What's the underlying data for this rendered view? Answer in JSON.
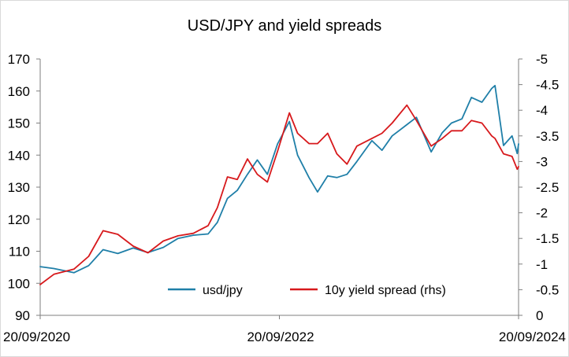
{
  "chart_data": {
    "type": "line",
    "title": "USD/JPY and yield spreads",
    "x_ticks": [
      "20/09/2020",
      "20/09/2022",
      "20/09/2024"
    ],
    "x_range": [
      "2020-09-20",
      "2024-09-20"
    ],
    "y_left": {
      "min": 90,
      "max": 170,
      "ticks": [
        "170",
        "160",
        "150",
        "140",
        "130",
        "120",
        "110",
        "100",
        "90"
      ]
    },
    "y_right": {
      "min": 0,
      "max": -5,
      "inverted": true,
      "ticks": [
        "-5",
        "-4.5",
        "-4",
        "-3.5",
        "-3",
        "-2.5",
        "-2",
        "-1.5",
        "-1",
        "-0.5",
        "0"
      ]
    },
    "grid": false,
    "legend_position": "bottom-center",
    "series": [
      {
        "name": "usd/jpy",
        "axis": "left",
        "color": "#1f7fa8",
        "points": [
          [
            "2020-09-20",
            105.2
          ],
          [
            "2020-11-01",
            104.6
          ],
          [
            "2021-01-01",
            103.3
          ],
          [
            "2021-02-15",
            105.5
          ],
          [
            "2021-03-31",
            110.5
          ],
          [
            "2021-05-15",
            109.3
          ],
          [
            "2021-07-01",
            111.0
          ],
          [
            "2021-08-15",
            109.6
          ],
          [
            "2021-10-01",
            111.2
          ],
          [
            "2021-11-15",
            114.0
          ],
          [
            "2022-01-01",
            115.0
          ],
          [
            "2022-02-15",
            115.4
          ],
          [
            "2022-03-15",
            119.0
          ],
          [
            "2022-04-15",
            126.5
          ],
          [
            "2022-05-15",
            129.0
          ],
          [
            "2022-06-15",
            134.0
          ],
          [
            "2022-07-15",
            138.5
          ],
          [
            "2022-08-15",
            134.0
          ],
          [
            "2022-09-15",
            143.5
          ],
          [
            "2022-10-21",
            150.5
          ],
          [
            "2022-11-15",
            140.0
          ],
          [
            "2022-12-20",
            133.0
          ],
          [
            "2023-01-15",
            128.5
          ],
          [
            "2023-02-15",
            133.5
          ],
          [
            "2023-03-15",
            133.0
          ],
          [
            "2023-04-15",
            134.0
          ],
          [
            "2023-05-15",
            138.0
          ],
          [
            "2023-06-30",
            144.5
          ],
          [
            "2023-07-31",
            141.5
          ],
          [
            "2023-08-31",
            146.0
          ],
          [
            "2023-10-15",
            149.5
          ],
          [
            "2023-11-13",
            151.8
          ],
          [
            "2023-12-28",
            141.0
          ],
          [
            "2024-01-31",
            147.0
          ],
          [
            "2024-02-28",
            150.0
          ],
          [
            "2024-03-31",
            151.3
          ],
          [
            "2024-04-29",
            158.0
          ],
          [
            "2024-05-31",
            156.5
          ],
          [
            "2024-06-30",
            160.8
          ],
          [
            "2024-07-10",
            161.7
          ],
          [
            "2024-08-05",
            143.0
          ],
          [
            "2024-08-31",
            146.0
          ],
          [
            "2024-09-16",
            140.5
          ],
          [
            "2024-09-20",
            143.5
          ]
        ]
      },
      {
        "name": "10y yield spread (rhs)",
        "axis": "right",
        "color": "#d7191c",
        "points": [
          [
            "2020-09-20",
            -0.6
          ],
          [
            "2020-11-01",
            -0.8
          ],
          [
            "2021-01-01",
            -0.9
          ],
          [
            "2021-02-15",
            -1.15
          ],
          [
            "2021-03-31",
            -1.65
          ],
          [
            "2021-05-15",
            -1.58
          ],
          [
            "2021-07-01",
            -1.35
          ],
          [
            "2021-08-15",
            -1.22
          ],
          [
            "2021-10-01",
            -1.45
          ],
          [
            "2021-11-15",
            -1.55
          ],
          [
            "2022-01-01",
            -1.6
          ],
          [
            "2022-02-15",
            -1.75
          ],
          [
            "2022-03-15",
            -2.1
          ],
          [
            "2022-04-15",
            -2.7
          ],
          [
            "2022-05-15",
            -2.65
          ],
          [
            "2022-06-15",
            -3.05
          ],
          [
            "2022-07-15",
            -2.75
          ],
          [
            "2022-08-15",
            -2.6
          ],
          [
            "2022-09-15",
            -3.2
          ],
          [
            "2022-10-21",
            -3.95
          ],
          [
            "2022-11-15",
            -3.55
          ],
          [
            "2022-12-20",
            -3.35
          ],
          [
            "2023-01-15",
            -3.35
          ],
          [
            "2023-02-15",
            -3.55
          ],
          [
            "2023-03-15",
            -3.15
          ],
          [
            "2023-04-15",
            -2.95
          ],
          [
            "2023-05-15",
            -3.3
          ],
          [
            "2023-06-30",
            -3.45
          ],
          [
            "2023-07-31",
            -3.55
          ],
          [
            "2023-08-31",
            -3.75
          ],
          [
            "2023-10-15",
            -4.1
          ],
          [
            "2023-11-13",
            -3.8
          ],
          [
            "2023-12-28",
            -3.3
          ],
          [
            "2024-01-31",
            -3.45
          ],
          [
            "2024-02-28",
            -3.6
          ],
          [
            "2024-03-31",
            -3.6
          ],
          [
            "2024-04-29",
            -3.8
          ],
          [
            "2024-05-31",
            -3.75
          ],
          [
            "2024-06-30",
            -3.5
          ],
          [
            "2024-07-10",
            -3.45
          ],
          [
            "2024-08-05",
            -3.15
          ],
          [
            "2024-08-31",
            -3.1
          ],
          [
            "2024-09-16",
            -2.85
          ],
          [
            "2024-09-20",
            -2.9
          ]
        ]
      }
    ]
  }
}
